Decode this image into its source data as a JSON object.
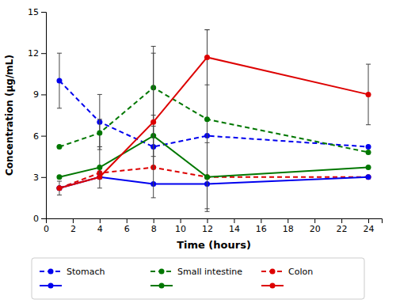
{
  "chart_data": {
    "type": "line",
    "xlabel": "Time (hours)",
    "ylabel": "Concentration (µg/mL)",
    "x": [
      1,
      4,
      8,
      12,
      24
    ],
    "series": [
      {
        "name": "Stomach",
        "color": "#0000EE",
        "line_style": "dashed",
        "marker": "circle",
        "values": [
          10.0,
          7.0,
          5.2,
          6.0,
          5.2
        ],
        "errors": [
          2.0,
          2.0,
          1.5,
          0,
          0
        ]
      },
      {
        "name": "Small intestine",
        "color": "#007700",
        "line_style": "dashed",
        "marker": "circle",
        "values": [
          5.2,
          6.2,
          9.5,
          7.2,
          4.8
        ],
        "errors": [
          0,
          1.0,
          2.5,
          6.5,
          0
        ]
      },
      {
        "name": "Colon",
        "color": "#DD0000",
        "line_style": "dashed",
        "marker": "circle",
        "values": [
          2.2,
          3.3,
          3.7,
          3.0,
          3.0
        ],
        "errors": [
          0,
          0,
          0,
          0,
          0
        ]
      },
      {
        "color": "#0000EE",
        "line_style": "solid",
        "marker": "circle",
        "values": [
          2.2,
          3.0,
          2.5,
          2.5,
          3.0
        ],
        "errors": [
          0.5,
          0,
          0,
          0,
          0
        ]
      },
      {
        "color": "#007700",
        "line_style": "solid",
        "marker": "circle",
        "values": [
          3.0,
          3.7,
          6.0,
          3.0,
          3.7
        ],
        "errors": [
          0,
          1.5,
          1.5,
          2.5,
          0
        ]
      },
      {
        "color": "#DD0000",
        "line_style": "solid",
        "marker": "circle",
        "values": [
          2.2,
          3.0,
          7.0,
          11.7,
          9.0
        ],
        "errors": [
          0,
          0,
          5.5,
          2.0,
          2.2
        ]
      }
    ],
    "xlim": [
      0,
      25
    ],
    "ylim": [
      0,
      15
    ],
    "xticks": [
      0,
      2,
      4,
      6,
      8,
      10,
      12,
      14,
      16,
      18,
      20,
      22,
      24
    ],
    "yticks": [
      0,
      3,
      6,
      9,
      12,
      15
    ],
    "grid": false,
    "legend": "bottom"
  }
}
